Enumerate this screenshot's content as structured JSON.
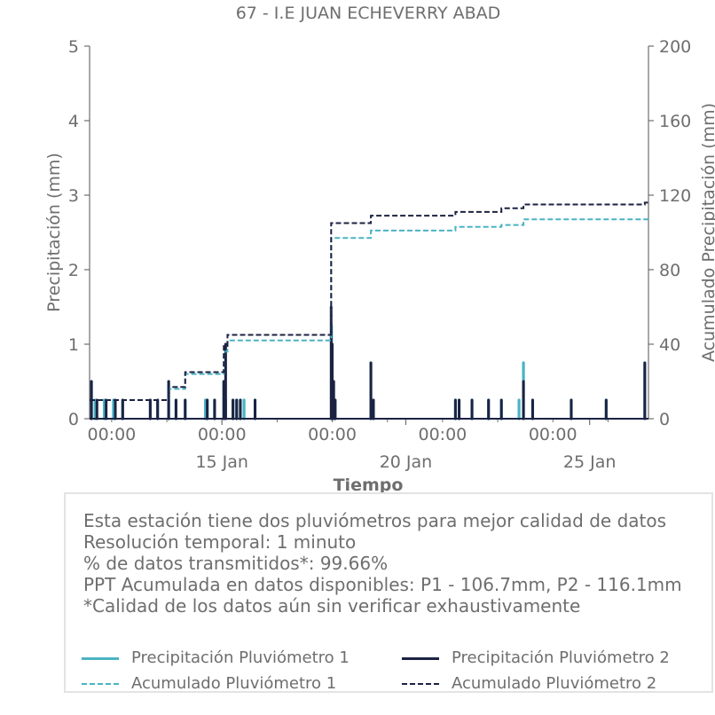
{
  "chart_data": {
    "type": "bar",
    "title": "67 - I.E JUAN ECHEVERRY ABAD",
    "xlabel": "Tiempo",
    "ylabel": "Precipitación (mm)",
    "ylabel_right": "Acumulado Precipitación (mm)",
    "ylim": [
      0,
      5
    ],
    "ylim_right": [
      0,
      200
    ],
    "yticks": [
      "0",
      "1",
      "2",
      "3",
      "4",
      "5"
    ],
    "yticks_right": [
      "0",
      "40",
      "80",
      "120",
      "160",
      "200"
    ],
    "xlim_days": [
      11.4,
      26.6
    ],
    "x_major_ticks": [
      {
        "day": 15,
        "label": "15 Jan"
      },
      {
        "day": 20,
        "label": "20 Jan"
      },
      {
        "day": 25,
        "label": "25 Jan"
      }
    ],
    "x_minor_ticks": [
      {
        "day": 12.0,
        "label": "00:00"
      },
      {
        "day": 15.0,
        "label": "00:00"
      },
      {
        "day": 18.0,
        "label": "00:00"
      },
      {
        "day": 21.0,
        "label": "00:00"
      },
      {
        "day": 24.0,
        "label": "00:00"
      }
    ],
    "x_minor_marks": [
      13.5,
      16.5,
      19.5,
      22.5,
      25.5
    ],
    "colors": {
      "p1": "#4ab3c3",
      "p2": "#1c2242",
      "axis": "#6e6e6e"
    },
    "series": [
      {
        "name": "Precipitación Pluviómetro 1",
        "style": "bars",
        "points": [
          {
            "x": 11.45,
            "y": 0.5
          },
          {
            "x": 11.55,
            "y": 0.25
          },
          {
            "x": 11.8,
            "y": 0.25
          },
          {
            "x": 12.05,
            "y": 0.25
          },
          {
            "x": 12.3,
            "y": 0.25
          },
          {
            "x": 13.05,
            "y": 0.25
          },
          {
            "x": 13.25,
            "y": 0.25
          },
          {
            "x": 13.55,
            "y": 0.5
          },
          {
            "x": 13.75,
            "y": 0.25
          },
          {
            "x": 14.0,
            "y": 0.25
          },
          {
            "x": 14.55,
            "y": 0.25
          },
          {
            "x": 14.6,
            "y": 0.25
          },
          {
            "x": 14.8,
            "y": 0.25
          },
          {
            "x": 15.05,
            "y": 0.5
          },
          {
            "x": 15.1,
            "y": 0.25
          },
          {
            "x": 15.3,
            "y": 0.25
          },
          {
            "x": 15.4,
            "y": 0.25
          },
          {
            "x": 15.5,
            "y": 0.25
          },
          {
            "x": 15.6,
            "y": 0.25
          },
          {
            "x": 15.9,
            "y": 0.25
          },
          {
            "x": 17.98,
            "y": 1.25
          },
          {
            "x": 18.02,
            "y": 0.5
          },
          {
            "x": 18.08,
            "y": 0.25
          },
          {
            "x": 19.05,
            "y": 0.75
          },
          {
            "x": 19.12,
            "y": 0.25
          },
          {
            "x": 21.35,
            "y": 0.25
          },
          {
            "x": 21.45,
            "y": 0.25
          },
          {
            "x": 21.8,
            "y": 0.25
          },
          {
            "x": 22.25,
            "y": 0.25
          },
          {
            "x": 22.6,
            "y": 0.25
          },
          {
            "x": 23.08,
            "y": 0.25
          },
          {
            "x": 23.2,
            "y": 0.75
          },
          {
            "x": 23.45,
            "y": 0.25
          },
          {
            "x": 24.5,
            "y": 0.25
          },
          {
            "x": 25.45,
            "y": 0.25
          },
          {
            "x": 26.5,
            "y": 0.75
          }
        ]
      },
      {
        "name": "Precipitación Pluviómetro 2",
        "style": "bars",
        "points": [
          {
            "x": 11.45,
            "y": 0.5
          },
          {
            "x": 11.6,
            "y": 0.25
          },
          {
            "x": 11.85,
            "y": 0.25
          },
          {
            "x": 12.1,
            "y": 0.25
          },
          {
            "x": 12.3,
            "y": 0.25
          },
          {
            "x": 13.05,
            "y": 0.25
          },
          {
            "x": 13.25,
            "y": 0.25
          },
          {
            "x": 13.55,
            "y": 0.5
          },
          {
            "x": 13.75,
            "y": 0.25
          },
          {
            "x": 14.0,
            "y": 0.25
          },
          {
            "x": 14.6,
            "y": 0.25
          },
          {
            "x": 14.8,
            "y": 0.25
          },
          {
            "x": 15.05,
            "y": 0.5
          },
          {
            "x": 15.1,
            "y": 1.0
          },
          {
            "x": 15.3,
            "y": 0.25
          },
          {
            "x": 15.4,
            "y": 0.25
          },
          {
            "x": 15.5,
            "y": 0.25
          },
          {
            "x": 15.9,
            "y": 0.25
          },
          {
            "x": 17.97,
            "y": 1.5
          },
          {
            "x": 18.0,
            "y": 1.0
          },
          {
            "x": 18.04,
            "y": 0.5
          },
          {
            "x": 18.08,
            "y": 0.25
          },
          {
            "x": 19.05,
            "y": 0.75
          },
          {
            "x": 19.12,
            "y": 0.25
          },
          {
            "x": 21.35,
            "y": 0.25
          },
          {
            "x": 21.45,
            "y": 0.25
          },
          {
            "x": 21.8,
            "y": 0.25
          },
          {
            "x": 22.25,
            "y": 0.25
          },
          {
            "x": 22.6,
            "y": 0.25
          },
          {
            "x": 23.2,
            "y": 0.5
          },
          {
            "x": 23.45,
            "y": 0.25
          },
          {
            "x": 24.5,
            "y": 0.25
          },
          {
            "x": 25.45,
            "y": 0.25
          },
          {
            "x": 26.5,
            "y": 0.75
          }
        ]
      },
      {
        "name": "Acumulado Pluviómetro 1",
        "style": "dashed-step",
        "axis": "right",
        "points": [
          {
            "x": 11.4,
            "y": 10
          },
          {
            "x": 13.55,
            "y": 16
          },
          {
            "x": 14.0,
            "y": 24
          },
          {
            "x": 15.05,
            "y": 36
          },
          {
            "x": 15.15,
            "y": 42
          },
          {
            "x": 17.97,
            "y": 97
          },
          {
            "x": 19.05,
            "y": 101
          },
          {
            "x": 21.35,
            "y": 103
          },
          {
            "x": 22.6,
            "y": 104
          },
          {
            "x": 23.2,
            "y": 107
          },
          {
            "x": 26.6,
            "y": 107
          }
        ]
      },
      {
        "name": "Acumulado Pluviómetro 2",
        "style": "dashed-step",
        "axis": "right",
        "points": [
          {
            "x": 11.4,
            "y": 10
          },
          {
            "x": 13.55,
            "y": 17
          },
          {
            "x": 14.0,
            "y": 25
          },
          {
            "x": 15.05,
            "y": 39
          },
          {
            "x": 15.15,
            "y": 45
          },
          {
            "x": 17.97,
            "y": 105
          },
          {
            "x": 19.05,
            "y": 109
          },
          {
            "x": 21.35,
            "y": 111
          },
          {
            "x": 22.6,
            "y": 113
          },
          {
            "x": 23.2,
            "y": 115
          },
          {
            "x": 26.5,
            "y": 116
          },
          {
            "x": 26.6,
            "y": 116
          }
        ]
      }
    ]
  },
  "info": {
    "line1": "Esta estación tiene dos pluviómetros para mejor calidad de datos",
    "line2": "Resolución temporal: 1 minuto",
    "line3": "% de datos transmitidos*: 99.66%",
    "line4": "PPT Acumulada en datos disponibles: P1 - 106.7mm, P2 - 116.1mm",
    "line5": "*Calidad de los datos aún sin verificar exhaustivamente"
  },
  "legend": {
    "p1": "Precipitación Pluviómetro 1",
    "p2": "Precipitación Pluviómetro 2",
    "acc1": "Acumulado Pluviómetro 1",
    "acc2": "Acumulado Pluviómetro 2"
  }
}
